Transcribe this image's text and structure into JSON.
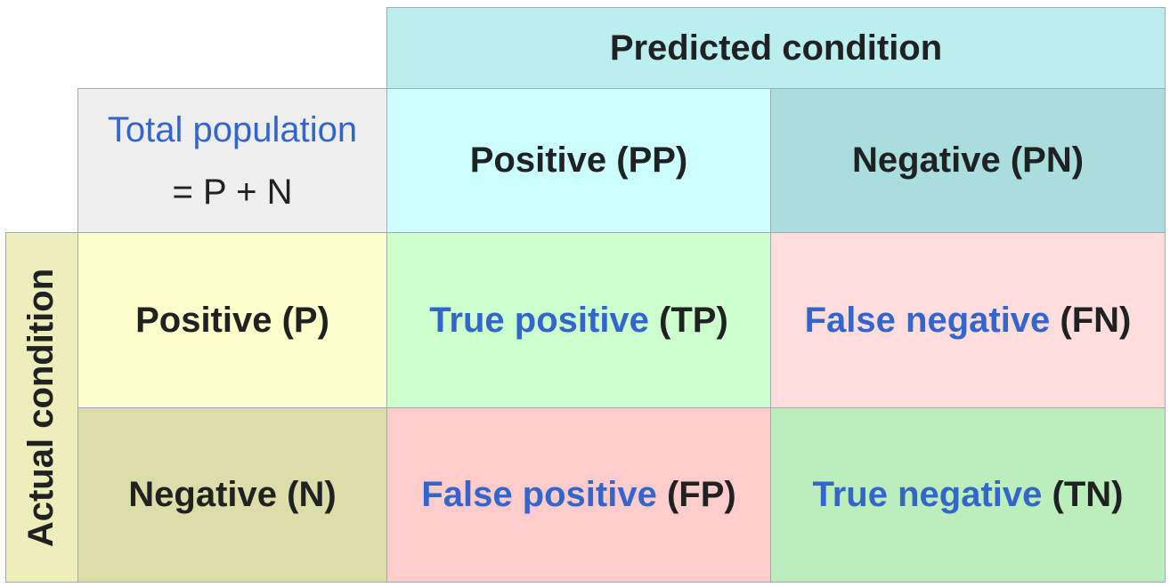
{
  "header": {
    "predicted_condition": "Predicted condition",
    "actual_condition": "Actual condition"
  },
  "total": {
    "link_text": "Total population",
    "formula": "= P + N"
  },
  "columns": {
    "positive": "Positive (PP)",
    "negative": "Negative (PN)"
  },
  "rows": {
    "positive": "Positive (P)",
    "negative": "Negative (N)"
  },
  "cells": {
    "tp": {
      "term": "True positive",
      "abbr": " (TP)"
    },
    "fn": {
      "term": "False negative",
      "abbr": " (FN)"
    },
    "fp": {
      "term": "False positive",
      "abbr": " (FP)"
    },
    "tn": {
      "term": "True negative",
      "abbr": " (TN)"
    }
  },
  "colors": {
    "predicted_header": "#bbeeee",
    "predicted_positive": "#ccffff",
    "predicted_negative": "#aadddd",
    "total": "#eeeeee",
    "actual_header": "#eeeebb",
    "actual_positive": "#ffffcc",
    "actual_negative": "#ddddaa",
    "true_cell_tp": "#ccffcc",
    "false_cell_fn": "#ffdddd",
    "false_cell_fp": "#ffcccc",
    "true_cell_tn": "#bbeebb",
    "link": "#3366cc",
    "text": "#202122"
  }
}
